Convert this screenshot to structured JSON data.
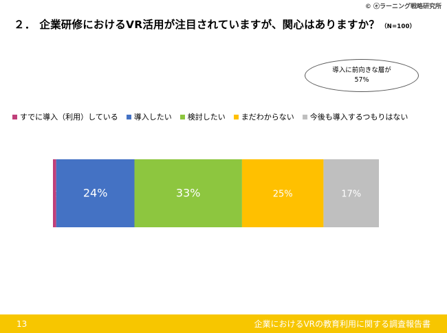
{
  "header": {
    "copyright": "© ⓔラーニング戦略研究所",
    "title_number": "２．",
    "title": "企業研修におけるVR活用が注目されていますが、関心はありますか？",
    "sample_size": "（N=100）"
  },
  "callout": {
    "line1": "導入に前向きな層が",
    "line2": "57%"
  },
  "chart_data": {
    "type": "bar",
    "orientation": "horizontal",
    "stacked": true,
    "categories": [
      ""
    ],
    "series": [
      {
        "name": "すでに導入（利用）している",
        "values": [
          1
        ],
        "label": "1%",
        "color": "#c0407a",
        "label_color": "#ffffff"
      },
      {
        "name": "導入したい",
        "values": [
          24
        ],
        "label": "24%",
        "color": "#4472c4",
        "label_color": "#ffffff"
      },
      {
        "name": "検討したい",
        "values": [
          33
        ],
        "label": "33%",
        "color": "#8dc63f",
        "label_color": "#ffffff"
      },
      {
        "name": "まだわからない",
        "values": [
          25
        ],
        "label": "25%",
        "color": "#ffc000",
        "label_color": "#ffffff"
      },
      {
        "name": "今後も導入するつもりはない",
        "values": [
          17
        ],
        "label": "17%",
        "color": "#bfbfbf",
        "label_color": "#ffffff"
      }
    ],
    "xlim": [
      0,
      100
    ],
    "legend": "top",
    "grid": false
  },
  "footer": {
    "page_number": "13",
    "report_title": "企業におけるVRの教育利用に関する調査報告書"
  }
}
